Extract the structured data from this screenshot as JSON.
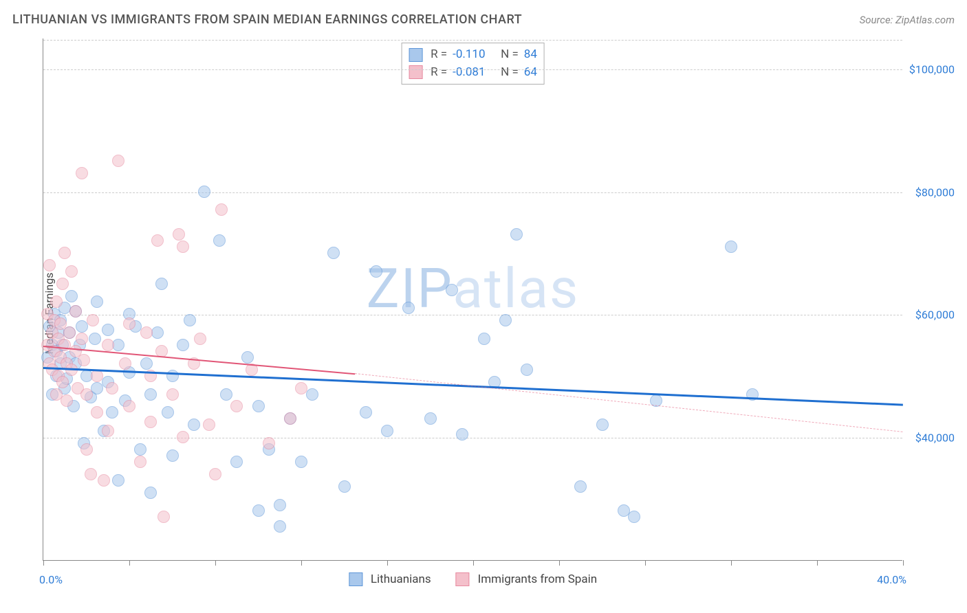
{
  "title": "LITHUANIAN VS IMMIGRANTS FROM SPAIN MEDIAN EARNINGS CORRELATION CHART",
  "source": "Source: ZipAtlas.com",
  "watermark": {
    "part1": "ZIP",
    "part2": "atlas",
    "color1": "#bcd3ee",
    "color2": "#d6e4f5",
    "fontsize": 80
  },
  "ylabel": "Median Earnings",
  "chart": {
    "type": "scatter",
    "background_color": "#ffffff",
    "grid_color": "#cccccc",
    "axis_color": "#888888",
    "xlim": [
      0,
      40
    ],
    "ylim": [
      20000,
      105000
    ],
    "x_tick_positions": [
      0,
      4,
      8,
      12,
      16,
      20,
      24,
      28,
      32,
      36,
      40
    ],
    "x_start_label": "0.0%",
    "x_end_label": "40.0%",
    "y_gridlines": [
      40000,
      60000,
      80000,
      100000
    ],
    "y_gridline_labels": [
      "$40,000",
      "$60,000",
      "$80,000",
      "$100,000"
    ],
    "label_color": "#2e7cd6",
    "label_fontsize": 16,
    "marker_radius": 9,
    "marker_opacity": 0.55,
    "series": [
      {
        "name": "Lithuanians",
        "fill": "#a9c8ec",
        "stroke": "#5e96d8",
        "trend_color": "#1f6fd0",
        "trend_width": 2.5,
        "R": "-0.110",
        "N": "84",
        "trend": {
          "x1": 0,
          "y1": 51500,
          "x2": 40,
          "y2": 45500,
          "dash_from_x": 40
        },
        "points": [
          [
            0.2,
            53000
          ],
          [
            0.3,
            58000
          ],
          [
            0.4,
            47000
          ],
          [
            0.4,
            55000
          ],
          [
            0.5,
            60000
          ],
          [
            0.6,
            54000
          ],
          [
            0.6,
            50000
          ],
          [
            0.7,
            57000
          ],
          [
            0.8,
            59000
          ],
          [
            0.8,
            52000
          ],
          [
            0.9,
            55000
          ],
          [
            1.0,
            48000
          ],
          [
            1.0,
            61000
          ],
          [
            1.1,
            49500
          ],
          [
            1.2,
            57000
          ],
          [
            1.2,
            53000
          ],
          [
            1.3,
            63000
          ],
          [
            1.4,
            45000
          ],
          [
            1.5,
            60500
          ],
          [
            1.5,
            52000
          ],
          [
            1.7,
            55000
          ],
          [
            1.8,
            58000
          ],
          [
            1.9,
            39000
          ],
          [
            2.0,
            50000
          ],
          [
            2.2,
            46500
          ],
          [
            2.4,
            56000
          ],
          [
            2.5,
            62000
          ],
          [
            2.5,
            48000
          ],
          [
            2.8,
            41000
          ],
          [
            3.0,
            49000
          ],
          [
            3.0,
            57500
          ],
          [
            3.2,
            44000
          ],
          [
            3.5,
            55000
          ],
          [
            3.5,
            33000
          ],
          [
            3.8,
            46000
          ],
          [
            4.0,
            50500
          ],
          [
            4.0,
            60000
          ],
          [
            4.3,
            58000
          ],
          [
            4.5,
            38000
          ],
          [
            4.8,
            52000
          ],
          [
            5.0,
            47000
          ],
          [
            5.0,
            31000
          ],
          [
            5.3,
            57000
          ],
          [
            5.5,
            65000
          ],
          [
            5.8,
            44000
          ],
          [
            6.0,
            50000
          ],
          [
            6.0,
            37000
          ],
          [
            6.5,
            55000
          ],
          [
            6.8,
            59000
          ],
          [
            7.0,
            42000
          ],
          [
            7.5,
            80000
          ],
          [
            8.2,
            72000
          ],
          [
            8.5,
            47000
          ],
          [
            9.0,
            36000
          ],
          [
            9.5,
            53000
          ],
          [
            10.0,
            28000
          ],
          [
            10.0,
            45000
          ],
          [
            10.5,
            38000
          ],
          [
            11.0,
            29000
          ],
          [
            11.0,
            25500
          ],
          [
            11.5,
            43000
          ],
          [
            12.0,
            36000
          ],
          [
            12.5,
            47000
          ],
          [
            13.5,
            70000
          ],
          [
            14.0,
            32000
          ],
          [
            15.0,
            44000
          ],
          [
            15.5,
            67000
          ],
          [
            16.0,
            41000
          ],
          [
            17.0,
            61000
          ],
          [
            18.0,
            43000
          ],
          [
            19.0,
            64000
          ],
          [
            19.5,
            40500
          ],
          [
            20.5,
            56000
          ],
          [
            21.0,
            49000
          ],
          [
            21.5,
            59000
          ],
          [
            22.0,
            73000
          ],
          [
            22.5,
            51000
          ],
          [
            25.0,
            32000
          ],
          [
            26.0,
            42000
          ],
          [
            27.0,
            28000
          ],
          [
            27.5,
            27000
          ],
          [
            28.5,
            46000
          ],
          [
            32.0,
            71000
          ],
          [
            33.0,
            47000
          ]
        ]
      },
      {
        "name": "Immigrants from Spain",
        "fill": "#f4c0cb",
        "stroke": "#e78aa0",
        "trend_color": "#e15576",
        "trend_width": 2,
        "R": "-0.081",
        "N": "64",
        "trend": {
          "x1": 0,
          "y1": 55000,
          "x2": 14.5,
          "y2": 50500,
          "dash_from_x": 14.5,
          "dash_to_x": 40,
          "dash_to_y": 41000
        },
        "points": [
          [
            0.2,
            55000
          ],
          [
            0.2,
            60000
          ],
          [
            0.3,
            52000
          ],
          [
            0.3,
            68000
          ],
          [
            0.4,
            57000
          ],
          [
            0.4,
            51000
          ],
          [
            0.5,
            59000
          ],
          [
            0.5,
            54000
          ],
          [
            0.6,
            47000
          ],
          [
            0.6,
            62000
          ],
          [
            0.7,
            56000
          ],
          [
            0.7,
            50000
          ],
          [
            0.8,
            53000
          ],
          [
            0.8,
            58500
          ],
          [
            0.9,
            65000
          ],
          [
            0.9,
            49000
          ],
          [
            1.0,
            55000
          ],
          [
            1.0,
            70000
          ],
          [
            1.1,
            52000
          ],
          [
            1.1,
            46000
          ],
          [
            1.2,
            57000
          ],
          [
            1.3,
            51000
          ],
          [
            1.3,
            67000
          ],
          [
            1.5,
            54000
          ],
          [
            1.5,
            60500
          ],
          [
            1.6,
            48000
          ],
          [
            1.8,
            56000
          ],
          [
            1.8,
            83000
          ],
          [
            1.9,
            52500
          ],
          [
            2.0,
            38000
          ],
          [
            2.0,
            47000
          ],
          [
            2.2,
            34000
          ],
          [
            2.3,
            59000
          ],
          [
            2.5,
            44000
          ],
          [
            2.5,
            50000
          ],
          [
            2.8,
            33000
          ],
          [
            3.0,
            55000
          ],
          [
            3.0,
            41000
          ],
          [
            3.2,
            48000
          ],
          [
            3.5,
            85000
          ],
          [
            3.8,
            52000
          ],
          [
            4.0,
            45000
          ],
          [
            4.0,
            58500
          ],
          [
            4.5,
            36000
          ],
          [
            4.8,
            57000
          ],
          [
            5.0,
            50000
          ],
          [
            5.0,
            42500
          ],
          [
            5.3,
            72000
          ],
          [
            5.5,
            54000
          ],
          [
            5.6,
            27000
          ],
          [
            6.0,
            47000
          ],
          [
            6.3,
            73000
          ],
          [
            6.5,
            40000
          ],
          [
            6.5,
            71000
          ],
          [
            7.0,
            52000
          ],
          [
            7.3,
            56000
          ],
          [
            7.7,
            42000
          ],
          [
            8.0,
            34000
          ],
          [
            8.3,
            77000
          ],
          [
            9.0,
            45000
          ],
          [
            9.7,
            51000
          ],
          [
            10.5,
            39000
          ],
          [
            11.5,
            43000
          ],
          [
            12.0,
            48000
          ]
        ]
      }
    ]
  },
  "stats_box": {
    "R_label": "R =",
    "N_label": "N ="
  },
  "legend": {
    "items": [
      "Lithuanians",
      "Immigrants from Spain"
    ]
  }
}
